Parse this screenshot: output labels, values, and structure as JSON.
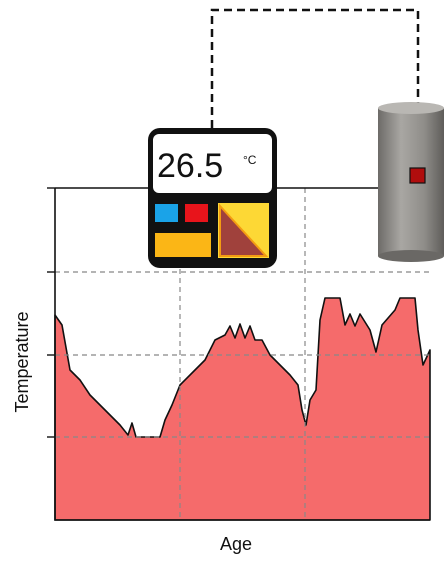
{
  "display": {
    "reading": "26.5",
    "unit": "°C"
  },
  "axes": {
    "y_label": "Temperature",
    "x_label": "Age"
  }
}
